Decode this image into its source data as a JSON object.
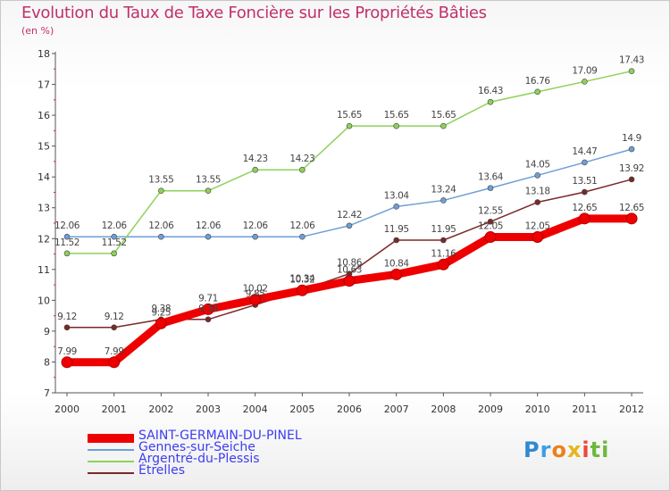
{
  "header": {
    "title": "Evolution du Taux de Taxe Foncière sur les Propriétés Bâties",
    "unit": "(en %)"
  },
  "brand": {
    "letters": [
      "P",
      "r",
      "o",
      "x",
      "i",
      "ti"
    ]
  },
  "chart_data": {
    "type": "line",
    "title": "Evolution du Taux de Taxe Foncière sur les Propriétés Bâties",
    "ylabel": "(en %)",
    "xlabel": "",
    "ylim": [
      7,
      18
    ],
    "yticks": [
      7,
      8,
      9,
      10,
      11,
      12,
      13,
      14,
      15,
      16,
      17,
      18
    ],
    "categories": [
      "2000",
      "2001",
      "2002",
      "2003",
      "2004",
      "2005",
      "2006",
      "2007",
      "2008",
      "2009",
      "2010",
      "2011",
      "2012"
    ],
    "grid": false,
    "legend_position": "bottom-left",
    "series": [
      {
        "name": "SAINT-GERMAIN-DU-PINEL",
        "color": "#ee0000",
        "values": [
          7.99,
          7.99,
          9.25,
          9.71,
          10.02,
          10.32,
          10.63,
          10.84,
          11.16,
          12.05,
          12.05,
          12.65,
          12.65
        ],
        "labels": [
          "7.99",
          "7.99",
          "9.25",
          "9.71",
          "10.02",
          "10.32",
          "10.63",
          "10.84",
          "11.16",
          "12.05",
          "12.05",
          "12.65",
          "12.65"
        ]
      },
      {
        "name": "Gennes-sur-Seiche",
        "color": "#6f9ed6",
        "values": [
          12.06,
          12.06,
          12.06,
          12.06,
          12.06,
          12.06,
          12.42,
          13.04,
          13.24,
          13.64,
          14.05,
          14.47,
          14.9
        ],
        "labels": [
          "12.06",
          "12.06",
          "12.06",
          "12.06",
          "12.06",
          "12.06",
          "12.42",
          "13.04",
          "13.24",
          "13.64",
          "14.05",
          "14.47",
          "14.9"
        ]
      },
      {
        "name": "Argentré-du-Plessis",
        "color": "#8ed15a",
        "values": [
          11.52,
          11.52,
          13.55,
          13.55,
          14.23,
          14.23,
          15.65,
          15.65,
          15.65,
          16.43,
          16.76,
          17.09,
          17.43
        ],
        "labels": [
          "11.52",
          "11.52",
          "13.55",
          "13.55",
          "14.23",
          "14.23",
          "15.65",
          "15.65",
          "15.65",
          "16.43",
          "16.76",
          "17.09",
          "17.43"
        ]
      },
      {
        "name": "Étrelles",
        "color": "#7a2828",
        "values": [
          9.12,
          9.12,
          9.38,
          9.38,
          9.85,
          10.34,
          10.86,
          11.95,
          11.95,
          12.55,
          13.18,
          13.51,
          13.92
        ],
        "labels": [
          "9.12",
          "9.12",
          "9.38",
          "9.38",
          "9.85",
          "10.34",
          "10.86",
          "11.95",
          "11.95",
          "12.55",
          "13.18",
          "13.51",
          "13.92"
        ]
      }
    ]
  }
}
